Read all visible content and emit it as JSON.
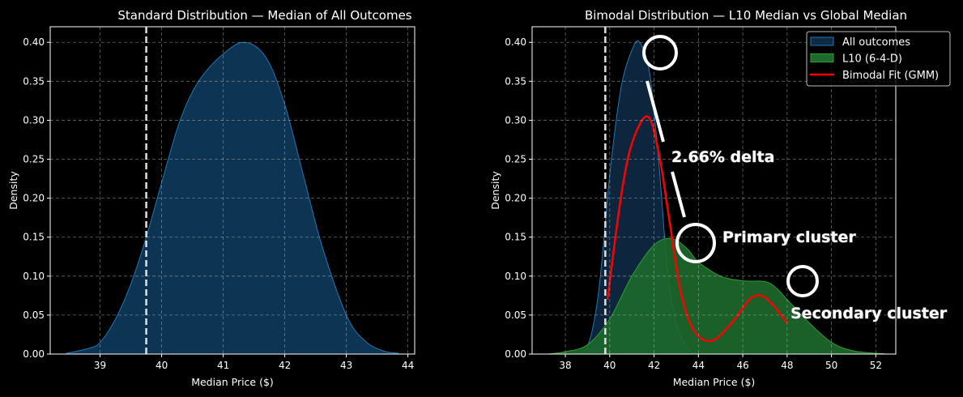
{
  "chart_data": [
    {
      "type": "area",
      "title": "Standard Distribution — Median of All Outcomes",
      "xlabel": "Median Price ($)",
      "ylabel": "Density",
      "xlim": [
        38.19,
        44.11
      ],
      "ylim": [
        0,
        0.42
      ],
      "xticks": [
        39,
        40,
        41,
        42,
        43,
        44
      ],
      "yticks": [
        "0.00",
        "0.05",
        "0.10",
        "0.15",
        "0.20",
        "0.25",
        "0.30",
        "0.35",
        "0.40"
      ],
      "grid": true,
      "reference_line": {
        "x": 39.75,
        "style": "dashed",
        "color": "#e0e0e0"
      },
      "series": [
        {
          "color": "#1f77b4",
          "fill": "#0e3a5c",
          "x": [
            38.45,
            38.8,
            39.0,
            39.25,
            39.5,
            39.75,
            40.0,
            40.3,
            40.6,
            41.0,
            41.35,
            41.7,
            42.0,
            42.3,
            42.6,
            43.0,
            43.3,
            43.6,
            43.85
          ],
          "y": [
            0.001,
            0.007,
            0.015,
            0.045,
            0.09,
            0.15,
            0.22,
            0.3,
            0.35,
            0.385,
            0.4,
            0.38,
            0.32,
            0.23,
            0.14,
            0.05,
            0.017,
            0.004,
            0.001
          ]
        }
      ]
    },
    {
      "type": "area",
      "title": "Bimodal Distribution — L10 Median vs Global Median",
      "xlabel": "Median Price ($)",
      "ylabel": "Density",
      "xlim": [
        36.5,
        52.9
      ],
      "ylim": [
        0,
        0.42
      ],
      "xticks": [
        38,
        40,
        42,
        44,
        46,
        48,
        50,
        52
      ],
      "yticks": [
        "0.00",
        "0.05",
        "0.10",
        "0.15",
        "0.20",
        "0.25",
        "0.30",
        "0.35",
        "0.40"
      ],
      "grid": true,
      "legend": {
        "placement": "top-right",
        "entries": [
          "All outcomes",
          "L10 (6-4-D)",
          "Bimodal Fit (GMM)"
        ]
      },
      "reference_line": {
        "x": 39.8,
        "style": "dashed",
        "color": "#e0e0e0"
      },
      "series": [
        {
          "name": "All outcomes",
          "kind": "area",
          "color": "#1f77b4",
          "fill": "#0e2a44",
          "x": [
            38.4,
            39.0,
            39.5,
            40.0,
            40.5,
            41.0,
            41.35,
            41.8,
            42.2,
            42.6,
            43.0,
            43.5,
            44.0
          ],
          "y": [
            0.0,
            0.01,
            0.08,
            0.23,
            0.34,
            0.39,
            0.4,
            0.36,
            0.25,
            0.11,
            0.04,
            0.008,
            0.0
          ]
        },
        {
          "name": "L10 (6-4-D)",
          "kind": "area",
          "color": "#2ca02c",
          "fill": "#1d6a2c",
          "x": [
            37.2,
            38.0,
            39.0,
            40.0,
            41.0,
            42.0,
            42.8,
            43.5,
            44.0,
            45.0,
            46.0,
            47.0,
            47.5,
            48.0,
            49.0,
            50.0,
            51.0,
            52.5
          ],
          "y": [
            0.0,
            0.003,
            0.012,
            0.045,
            0.1,
            0.14,
            0.148,
            0.135,
            0.118,
            0.1,
            0.094,
            0.093,
            0.085,
            0.07,
            0.04,
            0.015,
            0.004,
            0.0
          ]
        },
        {
          "name": "Bimodal Fit (GMM)",
          "kind": "line",
          "color": "#ff0000",
          "x": [
            39.9,
            40.5,
            41.0,
            41.7,
            42.2,
            42.7,
            43.2,
            43.8,
            44.6,
            45.5,
            46.3,
            46.8,
            47.3,
            48.0
          ],
          "y": [
            0.07,
            0.2,
            0.27,
            0.305,
            0.26,
            0.17,
            0.08,
            0.03,
            0.017,
            0.04,
            0.07,
            0.075,
            0.065,
            0.04
          ]
        }
      ],
      "annotations": [
        "2.66% delta",
        "Primary cluster",
        "Secondary cluster"
      ]
    }
  ]
}
